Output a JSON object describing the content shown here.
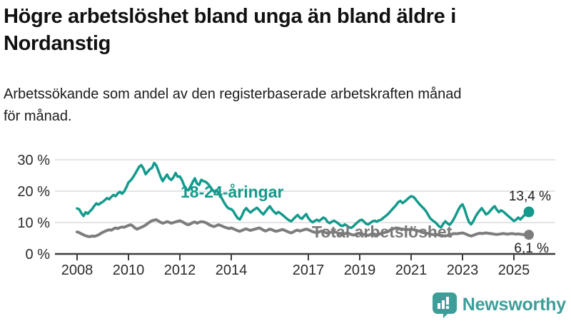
{
  "header": {
    "title_lines": [
      "Högre arbetslöshet bland unga än bland äldre i",
      "Nordanstig"
    ],
    "subtitle_lines": [
      "Arbetssökande som andel av den registerbaserade arbetskraften månad",
      "för månad."
    ]
  },
  "chart_data": {
    "type": "line",
    "unit": "%",
    "x_unit": "month",
    "x_start": "2008-01",
    "x_end": "2025-08",
    "points_per_year": 12,
    "grid": "horizontal",
    "legend_position": "inline-labels",
    "ylim": [
      0,
      32
    ],
    "x_tick_years": [
      2008,
      2010,
      2012,
      2014,
      2017,
      2019,
      2021,
      2023,
      2025
    ],
    "y_ticks": [
      {
        "value": 0,
        "label": "0 %"
      },
      {
        "value": 10,
        "label": "10 %"
      },
      {
        "value": 20,
        "label": "20 %"
      },
      {
        "value": 30,
        "label": "30 %"
      }
    ],
    "series": [
      {
        "name": "18-24-åringar",
        "label": "18-24-åringar",
        "end_label": "13,4 %",
        "last_value": 13.4,
        "color": "#149a8c",
        "values": [
          14.5,
          14.2,
          13.0,
          12.1,
          13.3,
          12.8,
          13.6,
          14.3,
          15.3,
          16.1,
          15.7,
          16.2,
          16.6,
          17.2,
          17.8,
          17.4,
          18.2,
          18.8,
          18.4,
          19.3,
          19.8,
          19.2,
          19.9,
          21.2,
          22.8,
          23.4,
          24.3,
          25.4,
          26.6,
          27.8,
          28.3,
          27.2,
          25.4,
          26.2,
          27.0,
          27.4,
          29.0,
          28.2,
          26.4,
          24.6,
          23.2,
          24.3,
          25.3,
          24.1,
          23.6,
          24.4,
          25.8,
          24.6,
          24.7,
          23.5,
          21.8,
          20.6,
          20.3,
          21.5,
          22.9,
          24.1,
          22.4,
          22.0,
          23.6,
          23.2,
          23.0,
          22.4,
          21.6,
          20.6,
          19.8,
          20.3,
          19.5,
          18.4,
          17.2,
          16.0,
          15.0,
          14.4,
          14.3,
          13.6,
          12.4,
          11.4,
          11.0,
          12.2,
          13.8,
          14.6,
          13.8,
          13.2,
          13.8,
          14.3,
          14.7,
          14.0,
          13.2,
          12.6,
          13.5,
          14.4,
          15.2,
          14.2,
          13.4,
          12.8,
          13.4,
          12.9,
          12.4,
          11.8,
          11.2,
          10.7,
          10.4,
          11.1,
          11.8,
          12.4,
          11.6,
          11.2,
          12.0,
          12.7,
          11.4,
          10.6,
          10.1,
          10.5,
          10.9,
          10.5,
          11.0,
          11.6,
          11.2,
          10.2,
          9.8,
          10.3,
          10.6,
          10.2,
          9.7,
          9.1,
          8.9,
          9.4,
          9.0,
          8.5,
          8.3,
          8.8,
          9.5,
          10.1,
          10.7,
          10.9,
          10.3,
          9.6,
          9.4,
          9.9,
          10.4,
          10.6,
          10.3,
          10.7,
          10.9,
          11.5,
          12.0,
          12.6,
          13.3,
          14.1,
          14.8,
          15.6,
          16.5,
          16.9,
          16.2,
          16.7,
          17.3,
          17.9,
          18.4,
          18.2,
          17.5,
          16.6,
          15.8,
          15.1,
          14.4,
          13.6,
          12.4,
          11.3,
          10.7,
          10.2,
          9.6,
          8.8,
          8.5,
          9.6,
          10.4,
          9.7,
          9.3,
          10.1,
          11.2,
          12.6,
          14.0,
          15.2,
          15.8,
          14.2,
          12.0,
          10.2,
          9.4,
          10.4,
          11.8,
          12.9,
          13.8,
          14.6,
          13.6,
          12.6,
          13.0,
          13.8,
          14.6,
          15.2,
          14.1,
          13.3,
          13.9,
          13.5,
          12.9,
          12.3,
          11.7,
          11.1,
          10.5,
          10.9,
          11.6,
          11.0,
          11.7,
          12.4,
          13.0,
          13.4
        ]
      },
      {
        "name": "Total arbetslöshet",
        "label": "Total arbetslöshet",
        "end_label": "6,1 %",
        "last_value": 6.1,
        "color": "#7d7d7d",
        "values": [
          7.0,
          6.8,
          6.4,
          6.1,
          5.8,
          5.6,
          5.5,
          5.7,
          5.6,
          5.8,
          6.1,
          6.5,
          6.9,
          7.2,
          7.5,
          7.7,
          7.6,
          8.0,
          8.3,
          8.1,
          8.4,
          8.6,
          8.5,
          8.8,
          9.1,
          9.3,
          8.9,
          8.3,
          7.9,
          8.2,
          8.5,
          8.8,
          9.2,
          9.7,
          10.2,
          10.6,
          10.8,
          10.9,
          10.5,
          10.1,
          9.8,
          10.0,
          10.3,
          10.1,
          9.8,
          10.0,
          10.2,
          10.4,
          10.6,
          10.3,
          9.9,
          9.5,
          9.3,
          9.6,
          10.0,
          10.2,
          9.8,
          10.1,
          10.3,
          10.2,
          10.0,
          9.6,
          9.2,
          8.9,
          8.7,
          9.0,
          9.3,
          9.1,
          8.8,
          8.5,
          8.3,
          8.1,
          8.3,
          8.0,
          7.7,
          7.4,
          7.2,
          7.5,
          7.8,
          8.0,
          7.7,
          7.5,
          7.7,
          7.9,
          8.1,
          8.3,
          8.0,
          7.6,
          7.3,
          7.6,
          7.9,
          7.7,
          7.4,
          7.2,
          7.4,
          7.6,
          7.8,
          7.5,
          7.2,
          6.9,
          6.7,
          7.0,
          7.4,
          7.6,
          7.3,
          7.5,
          7.7,
          7.9,
          7.7,
          7.4,
          7.1,
          6.9,
          6.7,
          7.0,
          7.3,
          7.1,
          6.8,
          6.6,
          6.8,
          7.0,
          7.1,
          6.9,
          6.6,
          6.3,
          6.1,
          6.4,
          6.7,
          6.5,
          6.2,
          6.0,
          6.2,
          6.4,
          6.6,
          6.4,
          6.2,
          6.0,
          5.9,
          6.2,
          6.5,
          6.3,
          6.1,
          6.3,
          6.5,
          6.7,
          6.9,
          7.1,
          7.5,
          7.9,
          8.1,
          8.3,
          8.2,
          8.0,
          7.9,
          7.8,
          7.7,
          7.8,
          7.9,
          7.8,
          7.6,
          7.4,
          7.2,
          7.1,
          6.9,
          6.7,
          6.5,
          6.3,
          6.2,
          6.1,
          6.2,
          6.0,
          5.9,
          5.8,
          5.7,
          5.9,
          6.1,
          6.3,
          6.5,
          6.4,
          6.5,
          6.6,
          6.7,
          6.5,
          6.2,
          5.9,
          5.7,
          5.9,
          6.2,
          6.4,
          6.6,
          6.5,
          6.6,
          6.7,
          6.6,
          6.5,
          6.4,
          6.3,
          6.2,
          6.3,
          6.4,
          6.5,
          6.4,
          6.3,
          6.4,
          6.5,
          6.4,
          6.3,
          6.4,
          6.3,
          6.2,
          6.2,
          6.1,
          6.1
        ]
      }
    ],
    "colors": {
      "axis": "#3c3c3c",
      "grid": "#dcdcdc",
      "tick_text": "#2b2b2b"
    }
  },
  "footer": {
    "logo_text": "Newsworthy",
    "logo_color": "#3d9e99",
    "logo_icon": "bar-chart-speech-bubble"
  }
}
